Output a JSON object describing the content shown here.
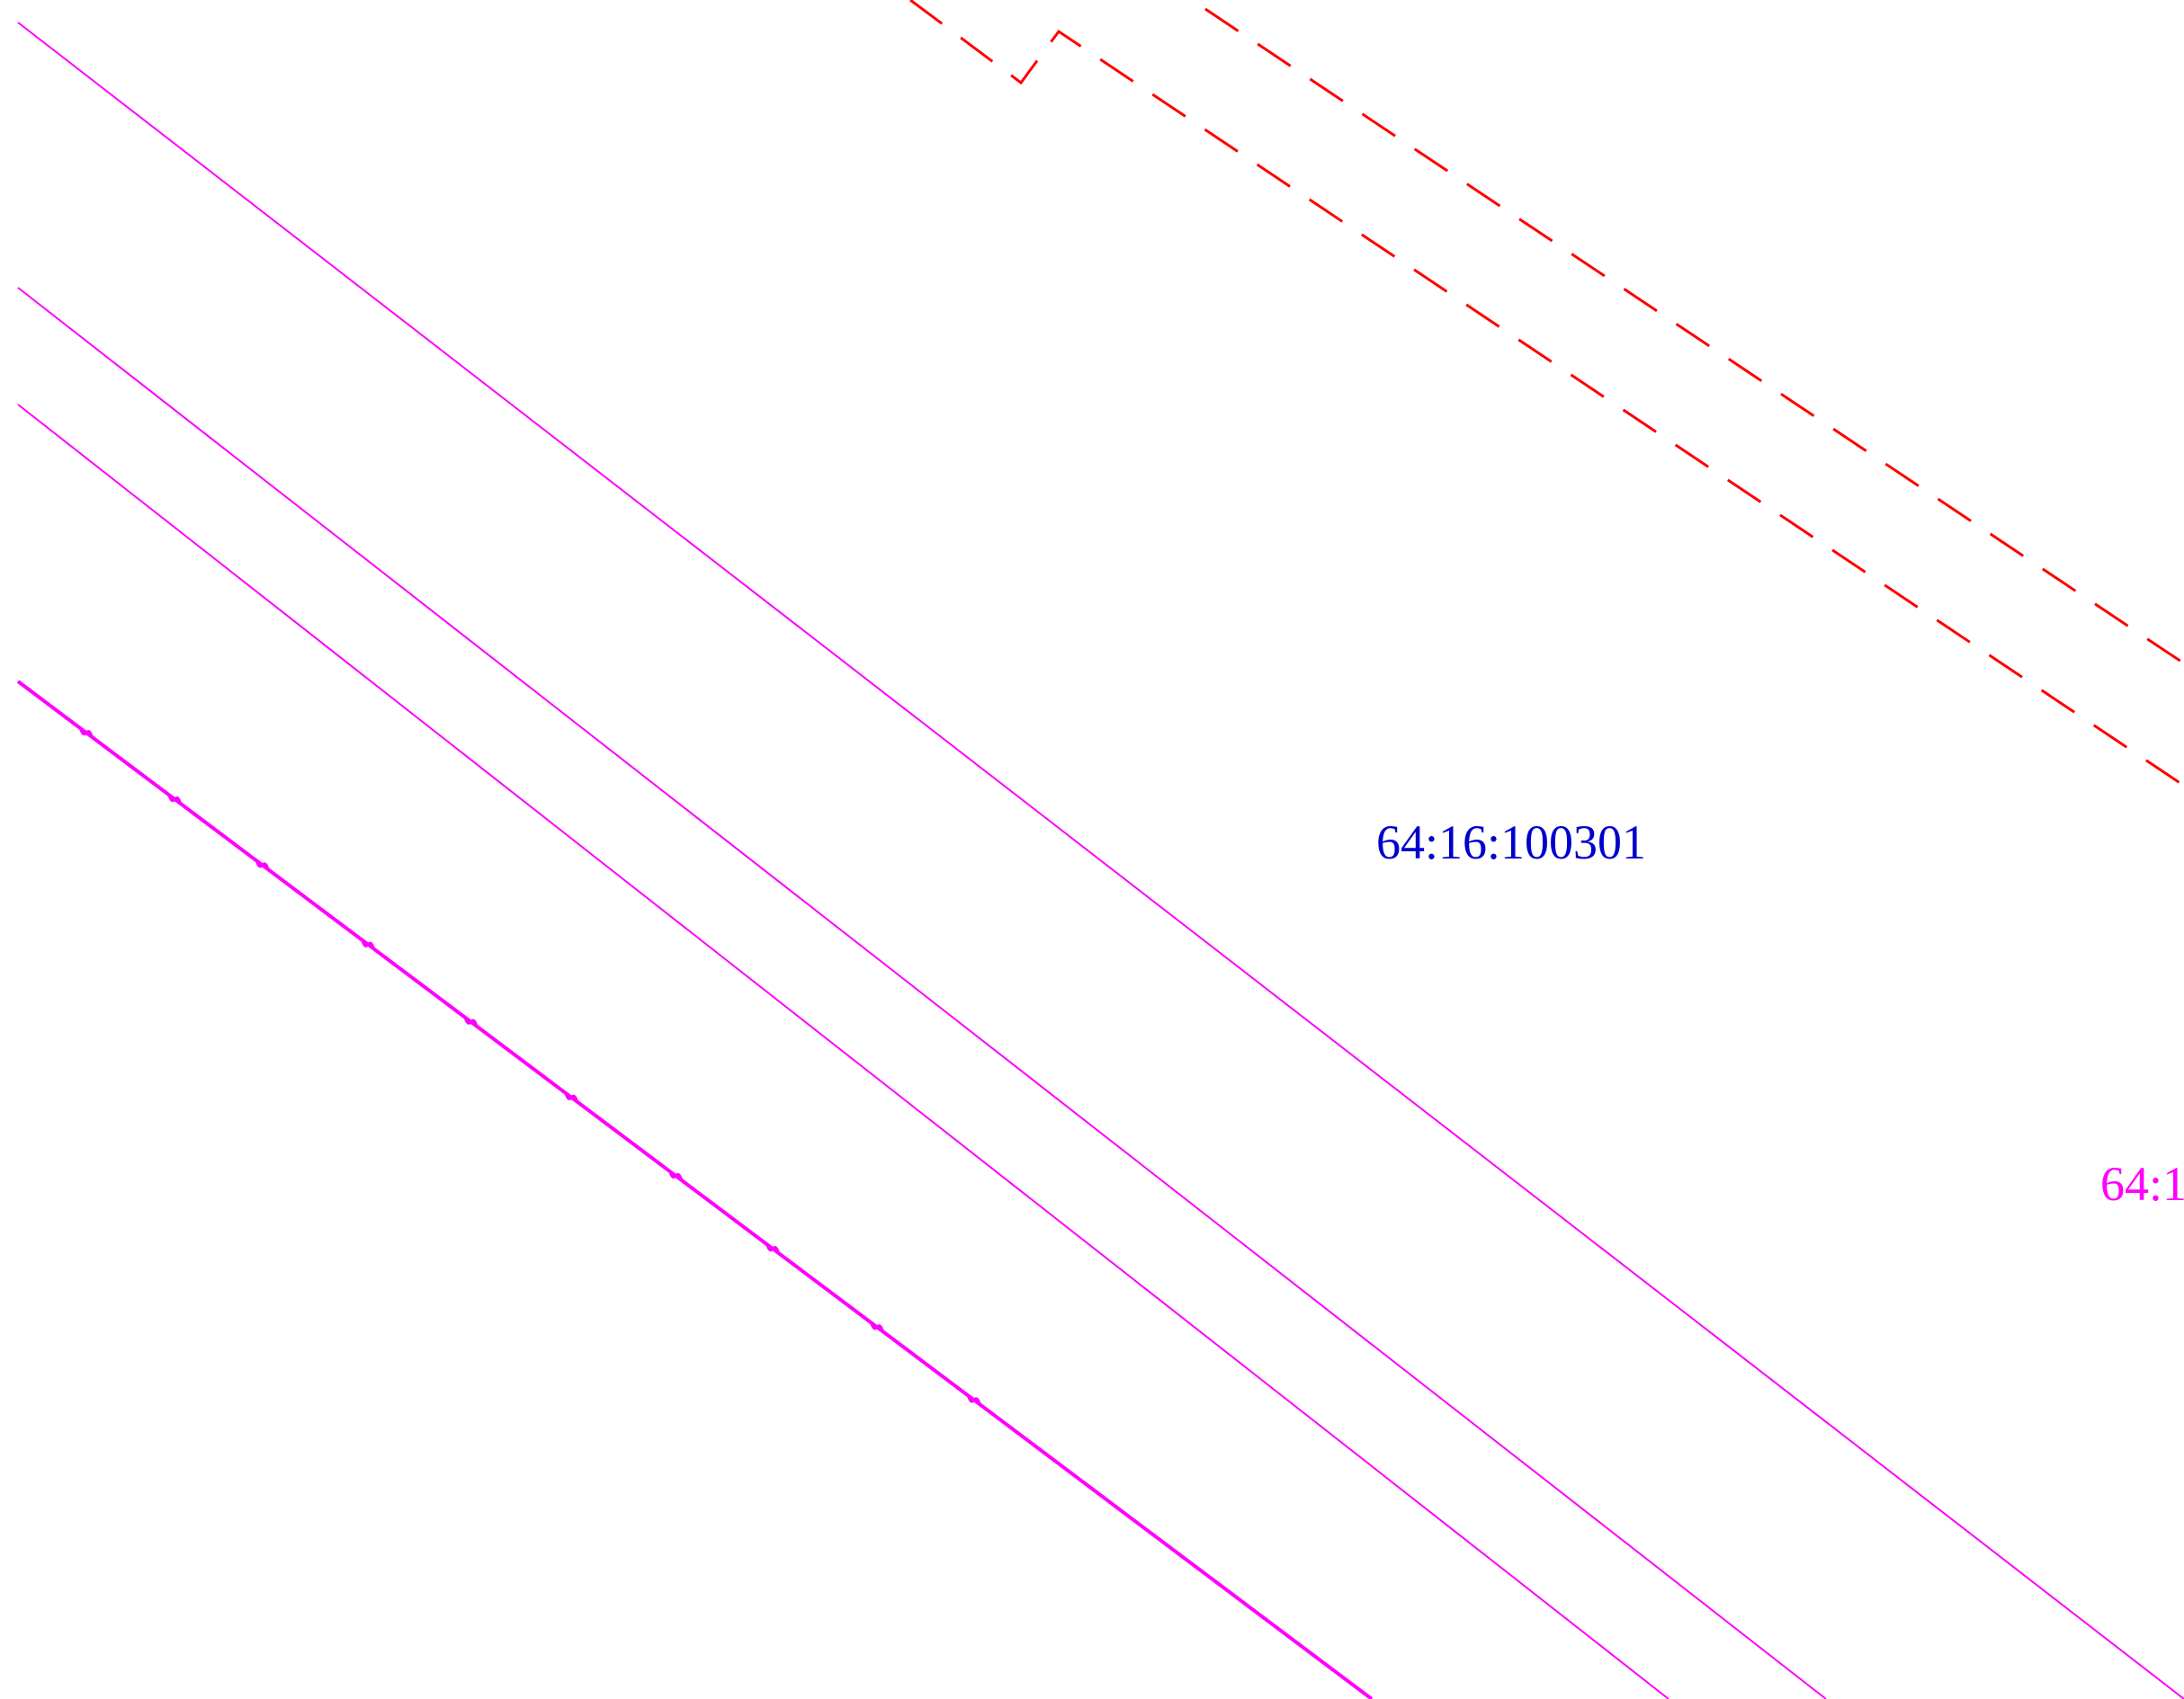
{
  "map": {
    "labels": {
      "cadastral_quarter": "64:16:100301",
      "parcel_partial": "64:1"
    },
    "colors": {
      "background": "#ffffff",
      "parcel_lines": "#ff00ff",
      "boundary_dashed": "#ff0000",
      "quarter_label": "#0000cc",
      "parcel_label": "#ff00ff"
    },
    "icons": {
      "fence_tick": "fence-tick-icon"
    }
  }
}
